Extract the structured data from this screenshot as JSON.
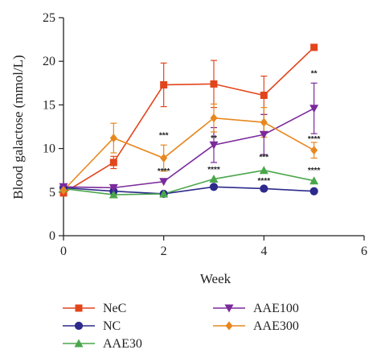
{
  "chart_data": {
    "type": "line",
    "xlabel": "Week",
    "ylabel": "Blood galactose (mmol/L)",
    "xlim": [
      0,
      6
    ],
    "ylim": [
      0,
      25
    ],
    "xticks": [
      0,
      2,
      4,
      6
    ],
    "yticks": [
      0,
      5,
      10,
      15,
      20,
      25
    ],
    "grid": false,
    "legend_position": "bottom",
    "series": [
      {
        "name": "NeC",
        "color": "#e2451b",
        "marker": "square",
        "x": [
          0,
          1,
          2,
          3,
          4,
          5
        ],
        "y": [
          4.9,
          8.4,
          17.3,
          17.4,
          16.1,
          21.6
        ],
        "err": [
          0,
          0.7,
          2.5,
          2.7,
          2.2,
          0
        ]
      },
      {
        "name": "NC",
        "color": "#2d2a8c",
        "marker": "circle",
        "x": [
          0,
          1,
          2,
          3,
          4,
          5
        ],
        "y": [
          5.5,
          5.1,
          4.8,
          5.6,
          5.4,
          5.1
        ],
        "err": [
          0,
          0,
          0,
          0,
          0,
          0
        ]
      },
      {
        "name": "AAE30",
        "color": "#4aa64a",
        "marker": "triangle-up",
        "x": [
          0,
          1,
          2,
          3,
          4,
          5
        ],
        "y": [
          5.4,
          4.7,
          4.8,
          6.5,
          7.5,
          6.3
        ],
        "err": [
          0,
          0,
          0,
          0,
          0,
          0
        ]
      },
      {
        "name": "AAE100",
        "color": "#7b2a9c",
        "marker": "triangle-down",
        "x": [
          0,
          1,
          2,
          3,
          4,
          5
        ],
        "y": [
          5.6,
          5.5,
          6.2,
          10.4,
          11.6,
          14.6
        ],
        "err": [
          0,
          0,
          0,
          2.0,
          2.3,
          2.9
        ]
      },
      {
        "name": "AAE300",
        "color": "#e8871e",
        "marker": "diamond",
        "x": [
          0,
          1,
          2,
          3,
          4,
          5
        ],
        "y": [
          5.2,
          11.2,
          8.9,
          13.5,
          13.0,
          9.8
        ],
        "err": [
          0,
          1.7,
          1.5,
          1.6,
          1.7,
          0.9
        ]
      }
    ],
    "annotations": [
      {
        "text": "***",
        "x": 2,
        "y": 11.2
      },
      {
        "text": "****",
        "x": 2,
        "y": 7.1
      },
      {
        "text": "**",
        "x": 3,
        "y": 10.9
      },
      {
        "text": "****",
        "x": 3,
        "y": 7.3
      },
      {
        "text": "***",
        "x": 4,
        "y": 8.7
      },
      {
        "text": "****",
        "x": 4,
        "y": 6.0
      },
      {
        "text": "**",
        "x": 5,
        "y": 18.3
      },
      {
        "text": "****",
        "x": 5,
        "y": 10.8
      },
      {
        "text": "****",
        "x": 5,
        "y": 7.2
      }
    ],
    "legend": [
      {
        "name": "NeC",
        "color": "#e2451b",
        "marker": "square"
      },
      {
        "name": "NC",
        "color": "#2d2a8c",
        "marker": "circle"
      },
      {
        "name": "AAE30",
        "color": "#4aa64a",
        "marker": "triangle-up"
      },
      {
        "name": "AAE100",
        "color": "#7b2a9c",
        "marker": "triangle-down"
      },
      {
        "name": "AAE300",
        "color": "#e8871e",
        "marker": "diamond"
      }
    ]
  }
}
